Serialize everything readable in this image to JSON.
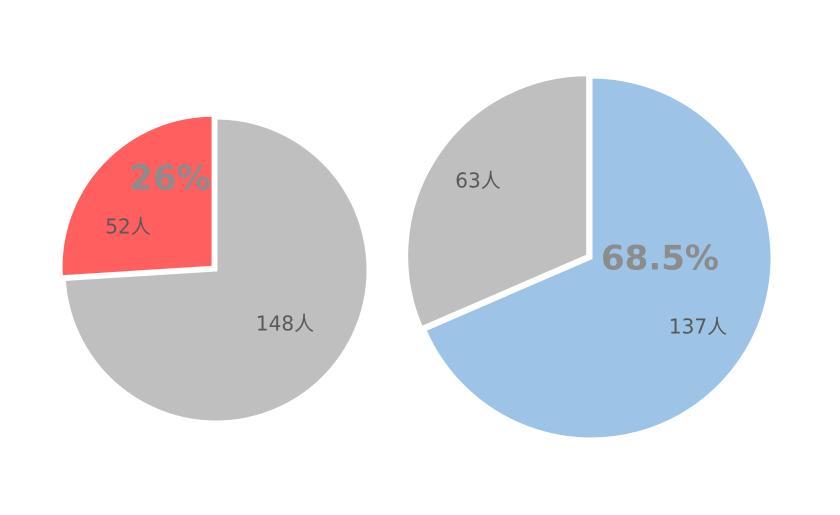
{
  "chart_data": [
    {
      "type": "pie",
      "annotation": "26%",
      "values": [
        148,
        52
      ],
      "value_labels": [
        "148人",
        "52人"
      ],
      "colors": [
        "#bfbfbf",
        "#ff5f5f"
      ]
    },
    {
      "type": "pie",
      "annotation": "68.5%",
      "values": [
        137,
        63
      ],
      "value_labels": [
        "137人",
        "63人"
      ],
      "colors": [
        "#9dc3e6",
        "#bfbfbf"
      ]
    }
  ]
}
